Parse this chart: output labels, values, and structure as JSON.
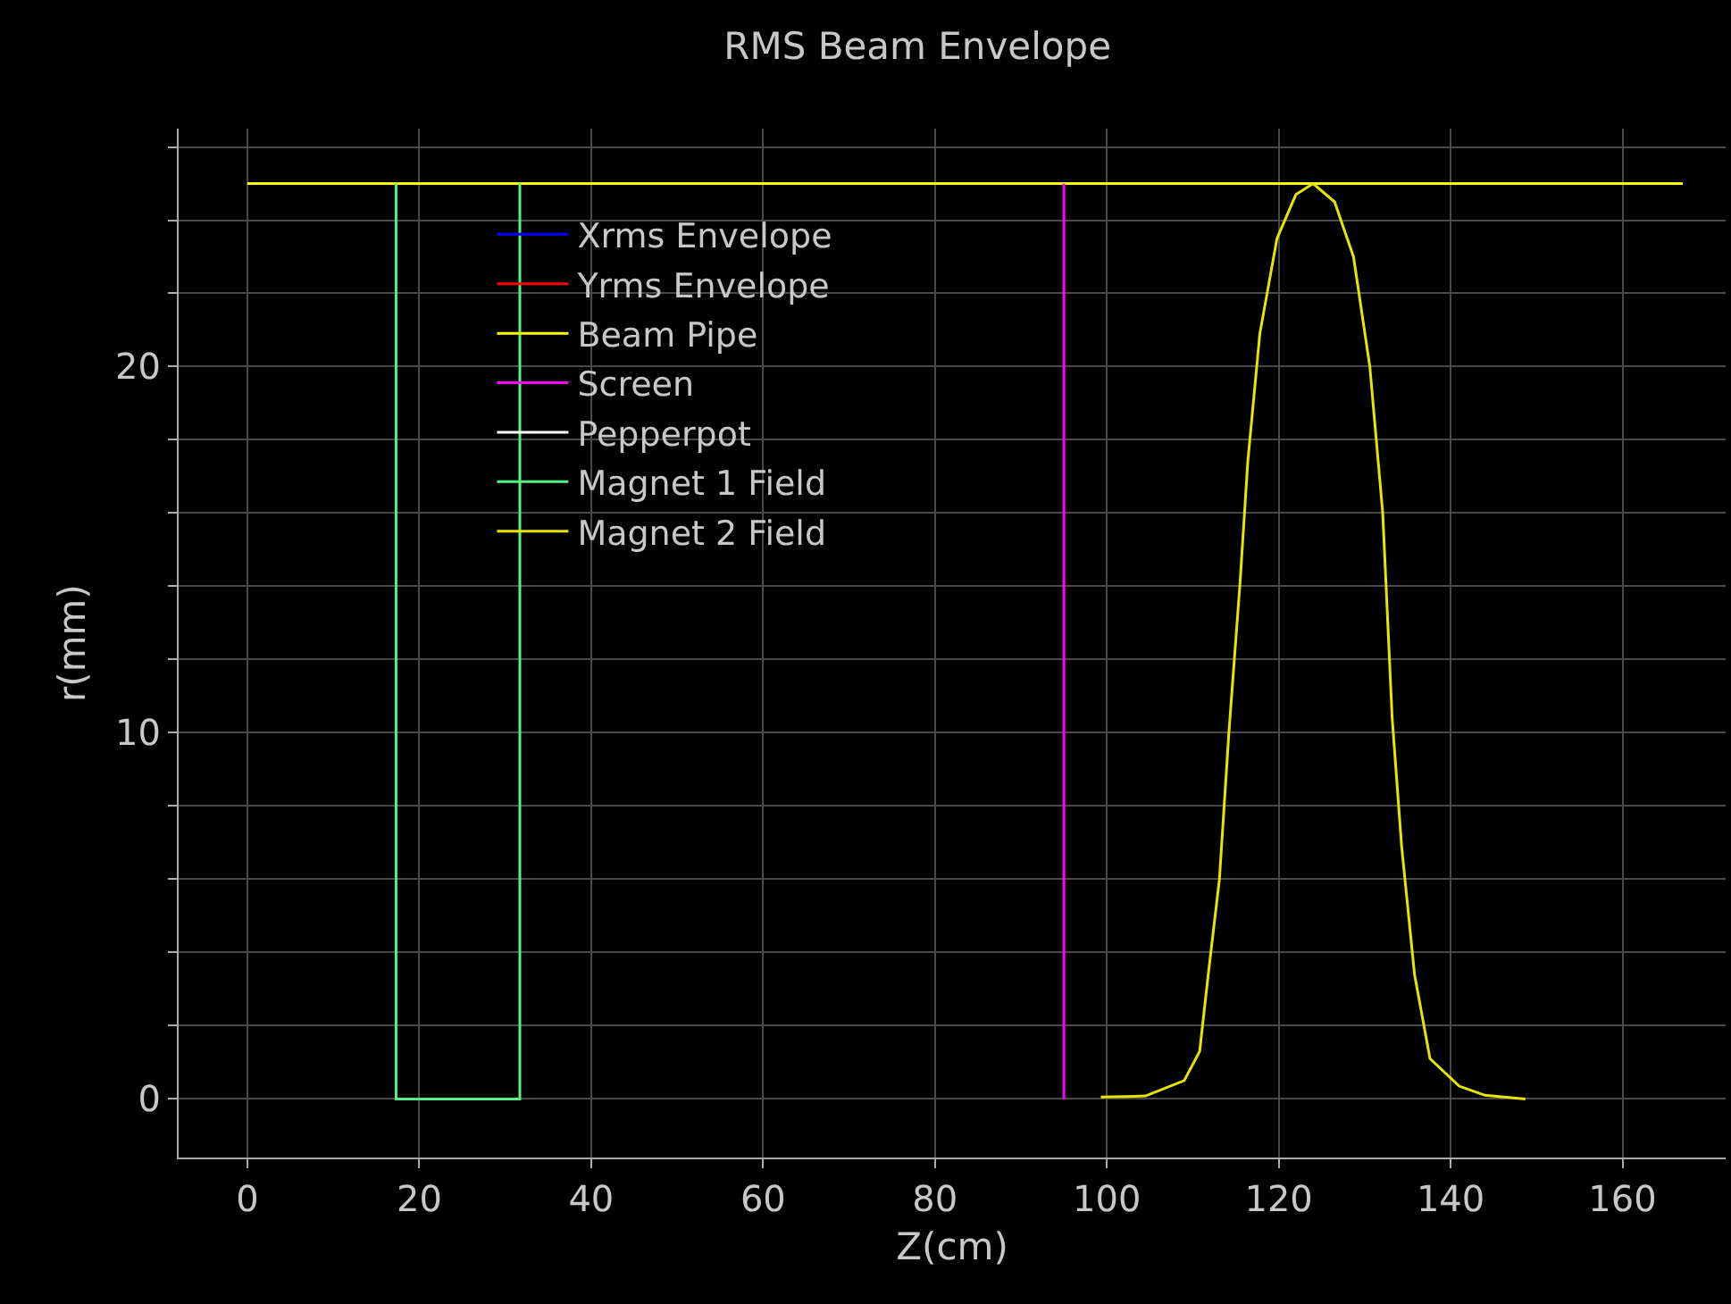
{
  "chart_data": {
    "type": "line",
    "title": "RMS Beam Envelope",
    "xlabel": "Z(cm)",
    "ylabel": "r(mm)",
    "xlim": [
      -8,
      172
    ],
    "ylim": [
      -1.6,
      26.5
    ],
    "xticks": [
      0,
      20,
      40,
      60,
      80,
      100,
      120,
      140,
      160
    ],
    "yticks": [
      0,
      {
        "value": 2,
        "label": null
      },
      {
        "value": 4,
        "label": null
      },
      {
        "value": 6,
        "label": null
      },
      {
        "value": 8,
        "label": null
      },
      10,
      {
        "value": 12,
        "label": null
      },
      {
        "value": 14,
        "label": null
      },
      {
        "value": 16,
        "label": null
      },
      {
        "value": 18,
        "label": null
      },
      20,
      {
        "value": 22,
        "label": null
      },
      {
        "value": 24,
        "label": null
      },
      {
        "value": 26,
        "label": null
      }
    ],
    "grid": true,
    "legend": "top left",
    "marker": "none",
    "line_style": "solid",
    "series": [
      {
        "name": "Xrms Envelope",
        "color": "#0000ff"
      },
      {
        "name": "Yrms Envelope",
        "color": "#ff0000"
      },
      {
        "name": "Beam Pipe",
        "color": "#ffff00",
        "x": [
          0,
          167
        ],
        "values": [
          25,
          25
        ]
      },
      {
        "name": "Screen",
        "color": "#ff00ff",
        "x": [
          95,
          95
        ],
        "values": [
          0,
          25
        ]
      },
      {
        "name": "Pepperpot",
        "color": "#ffffff"
      },
      {
        "name": "Magnet 1 Field",
        "color": "#55ee88",
        "x": [
          17.3,
          17.3,
          31.7,
          31.7
        ],
        "values": [
          25,
          0,
          0,
          25
        ]
      },
      {
        "name": "Magnet 2 Field",
        "color": "#e6e600",
        "x": [
          99.3,
          104.5,
          109.0,
          110.8,
          111.8,
          113.1,
          114.2,
          115.5,
          116.4,
          117.8,
          119.8,
          122.0,
          124.0,
          126.5,
          128.7,
          130.6,
          132.1,
          133.2,
          134.3,
          135.8,
          137.6,
          141.0,
          144.0,
          148.7
        ],
        "values": [
          0.05,
          0.08,
          0.5,
          1.3,
          3.4,
          6.0,
          10.0,
          14.1,
          17.4,
          20.9,
          23.5,
          24.7,
          25,
          24.5,
          23.0,
          20.0,
          16.0,
          10.4,
          6.9,
          3.4,
          1.1,
          0.35,
          0.1,
          0.0
        ]
      }
    ]
  }
}
